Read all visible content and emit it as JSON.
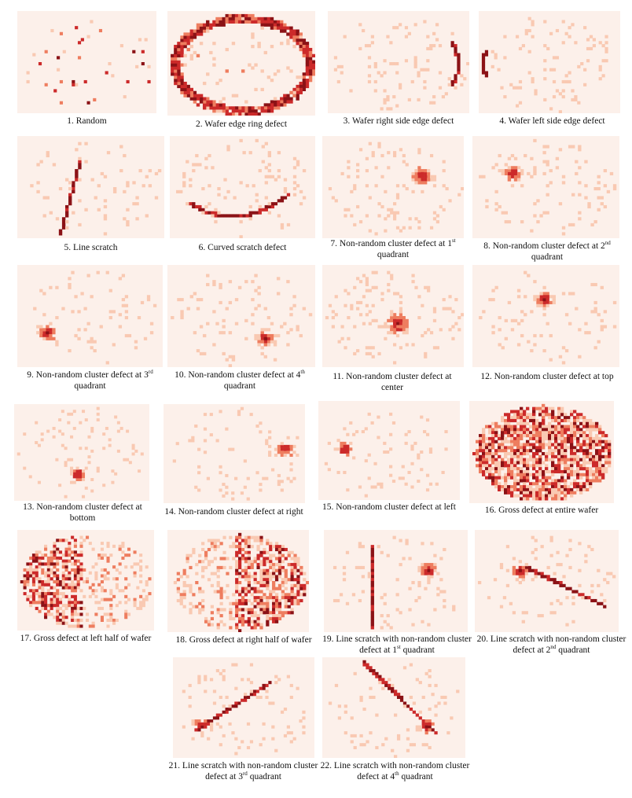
{
  "colors": {
    "background": "#fcf0ea",
    "light": "#f9c9b2",
    "medium": "#ee7d5f",
    "dark": "#cc2a2a",
    "darkest": "#8b1216"
  },
  "panels": [
    {
      "id": 1,
      "caption": "1. Random",
      "pattern": "random"
    },
    {
      "id": 2,
      "caption": "2. Wafer edge ring defect",
      "pattern": "edge-ring"
    },
    {
      "id": 3,
      "caption": "3. Wafer right side edge defect",
      "pattern": "right-edge"
    },
    {
      "id": 4,
      "caption": "4. Wafer left side edge defect",
      "pattern": "left-edge"
    },
    {
      "id": 5,
      "caption": "5. Line scratch",
      "pattern": "line-scratch"
    },
    {
      "id": 6,
      "caption": "6. Curved scratch defect",
      "pattern": "curved-scratch"
    },
    {
      "id": 7,
      "caption": "7. Non-random cluster defect at 1st quadrant",
      "pattern": "cluster-q1"
    },
    {
      "id": 8,
      "caption": "8. Non-random cluster defect at 2nd quadrant",
      "pattern": "cluster-q2"
    },
    {
      "id": 9,
      "caption": "9. Non-random cluster defect at 3rd quadrant",
      "pattern": "cluster-q3"
    },
    {
      "id": 10,
      "caption": "10. Non-random cluster defect at 4th quadrant",
      "pattern": "cluster-q4"
    },
    {
      "id": 11,
      "caption": "11. Non-random cluster defect at center",
      "pattern": "cluster-center"
    },
    {
      "id": 12,
      "caption": "12. Non-random cluster defect at top",
      "pattern": "cluster-top"
    },
    {
      "id": 13,
      "caption": "13. Non-random cluster defect at bottom",
      "pattern": "cluster-bottom"
    },
    {
      "id": 14,
      "caption": "14. Non-random cluster defect at right",
      "pattern": "cluster-right"
    },
    {
      "id": 15,
      "caption": "15. Non-random cluster defect at left",
      "pattern": "cluster-left"
    },
    {
      "id": 16,
      "caption": "16. Gross defect at entire wafer",
      "pattern": "gross-entire"
    },
    {
      "id": 17,
      "caption": "17. Gross defect at left half of wafer",
      "pattern": "gross-left"
    },
    {
      "id": 18,
      "caption": "18. Gross defect at right half of wafer",
      "pattern": "gross-right"
    },
    {
      "id": 19,
      "caption": "19. Line scratch with non-random cluster defect at 1st quadrant",
      "pattern": "scratch-cluster-q1"
    },
    {
      "id": 20,
      "caption": "20. Line scratch with non-random cluster defect at 2nd quadrant",
      "pattern": "scratch-cluster-q2"
    },
    {
      "id": 21,
      "caption": "21. Line scratch with non-random cluster defect at 3rd quadrant",
      "pattern": "scratch-cluster-q3"
    },
    {
      "id": 22,
      "caption": "22. Line scratch with non-random cluster defect at 4th quadrant",
      "pattern": "scratch-cluster-q4"
    }
  ]
}
